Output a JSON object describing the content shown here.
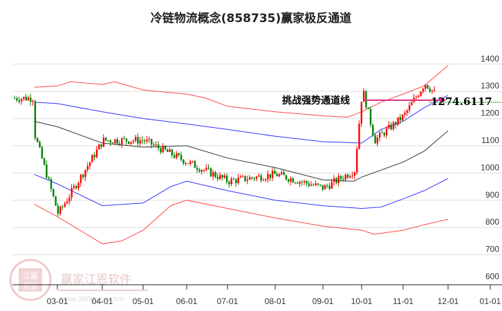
{
  "title": "冷链物流概念(858735)赢家极反通道",
  "chart_data": {
    "type": "candlestick",
    "title": "冷链物流概念(858735)赢家极反通道",
    "xlabel": "",
    "ylabel": "",
    "ylim": [
      600,
      1400
    ],
    "y_ticks": [
      1400,
      1300,
      1200,
      1100,
      1000,
      900,
      800,
      700,
      600
    ],
    "x_ticks": [
      "03-01",
      "04-01",
      "05-01",
      "06-01",
      "07-01",
      "08-01",
      "09-01",
      "10-01",
      "11-01",
      "12-01",
      "01-01"
    ],
    "grid": "horizontal",
    "legend": "none",
    "annotation": {
      "label": "挑战强势通道线",
      "value": "1274.6117",
      "level": 1274.6117
    },
    "series": [
      {
        "name": "outer-upper-band",
        "color": "#ff4444",
        "points": [
          [
            "02-15",
            1305
          ],
          [
            "03-01",
            1310
          ],
          [
            "03-10",
            1325
          ],
          [
            "04-01",
            1315
          ],
          [
            "04-10",
            1325
          ],
          [
            "05-01",
            1295
          ],
          [
            "06-01",
            1280
          ],
          [
            "06-15",
            1265
          ],
          [
            "07-01",
            1235
          ],
          [
            "08-01",
            1215
          ],
          [
            "09-01",
            1200
          ],
          [
            "09-20",
            1195
          ],
          [
            "10-01",
            1215
          ],
          [
            "10-15",
            1250
          ],
          [
            "11-01",
            1280
          ],
          [
            "11-15",
            1310
          ],
          [
            "12-01",
            1385
          ]
        ]
      },
      {
        "name": "inner-upper-band",
        "color": "#3333ff",
        "points": [
          [
            "02-15",
            1250
          ],
          [
            "03-01",
            1245
          ],
          [
            "04-01",
            1215
          ],
          [
            "05-01",
            1190
          ],
          [
            "06-01",
            1170
          ],
          [
            "07-01",
            1150
          ],
          [
            "08-01",
            1125
          ],
          [
            "09-01",
            1105
          ],
          [
            "10-01",
            1100
          ],
          [
            "10-15",
            1150
          ],
          [
            "11-01",
            1180
          ],
          [
            "11-15",
            1230
          ],
          [
            "12-01",
            1275
          ]
        ]
      },
      {
        "name": "middle-line",
        "color": "#333333",
        "points": [
          [
            "02-15",
            1180
          ],
          [
            "03-01",
            1160
          ],
          [
            "04-01",
            1100
          ],
          [
            "05-01",
            1085
          ],
          [
            "06-01",
            1090
          ],
          [
            "07-01",
            1045
          ],
          [
            "08-01",
            1010
          ],
          [
            "09-01",
            965
          ],
          [
            "09-25",
            960
          ],
          [
            "10-01",
            975
          ],
          [
            "11-01",
            1030
          ],
          [
            "11-15",
            1070
          ],
          [
            "12-01",
            1145
          ]
        ]
      },
      {
        "name": "inner-lower-band",
        "color": "#3333ff",
        "points": [
          [
            "02-15",
            985
          ],
          [
            "03-01",
            950
          ],
          [
            "04-01",
            870
          ],
          [
            "05-01",
            880
          ],
          [
            "05-20",
            940
          ],
          [
            "06-01",
            960
          ],
          [
            "07-01",
            925
          ],
          [
            "08-01",
            890
          ],
          [
            "09-01",
            870
          ],
          [
            "10-01",
            860
          ],
          [
            "10-15",
            865
          ],
          [
            "11-01",
            895
          ],
          [
            "11-15",
            925
          ],
          [
            "12-01",
            970
          ]
        ]
      },
      {
        "name": "outer-lower-band",
        "color": "#ff4444",
        "points": [
          [
            "02-15",
            875
          ],
          [
            "03-01",
            830
          ],
          [
            "04-01",
            730
          ],
          [
            "04-15",
            740
          ],
          [
            "05-01",
            780
          ],
          [
            "05-20",
            870
          ],
          [
            "06-01",
            890
          ],
          [
            "07-01",
            860
          ],
          [
            "08-01",
            825
          ],
          [
            "09-01",
            795
          ],
          [
            "10-01",
            780
          ],
          [
            "10-10",
            765
          ],
          [
            "11-01",
            780
          ],
          [
            "11-15",
            800
          ],
          [
            "12-01",
            820
          ]
        ]
      }
    ],
    "price_summary": [
      {
        "period": "02-15",
        "approx_close": 1130
      },
      {
        "period": "03-01",
        "approx_low": 840
      },
      {
        "period": "04-01",
        "approx_close": 1110
      },
      {
        "period": "05-01",
        "approx_close": 1110
      },
      {
        "period": "06-01",
        "approx_close": 1030
      },
      {
        "period": "07-01",
        "approx_close": 960
      },
      {
        "period": "08-01",
        "approx_close": 985
      },
      {
        "period": "09-01",
        "approx_close": 935
      },
      {
        "period": "09-25",
        "approx_close": 1000
      },
      {
        "period": "10-01",
        "approx_high": 1300
      },
      {
        "period": "10-10",
        "approx_close": 1110
      },
      {
        "period": "11-01",
        "approx_close": 1200
      },
      {
        "period": "11-15",
        "approx_high": 1320
      },
      {
        "period": "11-25",
        "approx_close": 1265
      }
    ]
  },
  "watermark": {
    "seal_top": "江赢",
    "seal_bottom": "恩家",
    "name": "赢家江恩软件",
    "url": "www.360gann.com"
  },
  "colors": {
    "up": "#ff0000",
    "down": "#008000",
    "annotation_line": "#e0307a",
    "value_line": "#009900",
    "grid": "#dddddd"
  }
}
